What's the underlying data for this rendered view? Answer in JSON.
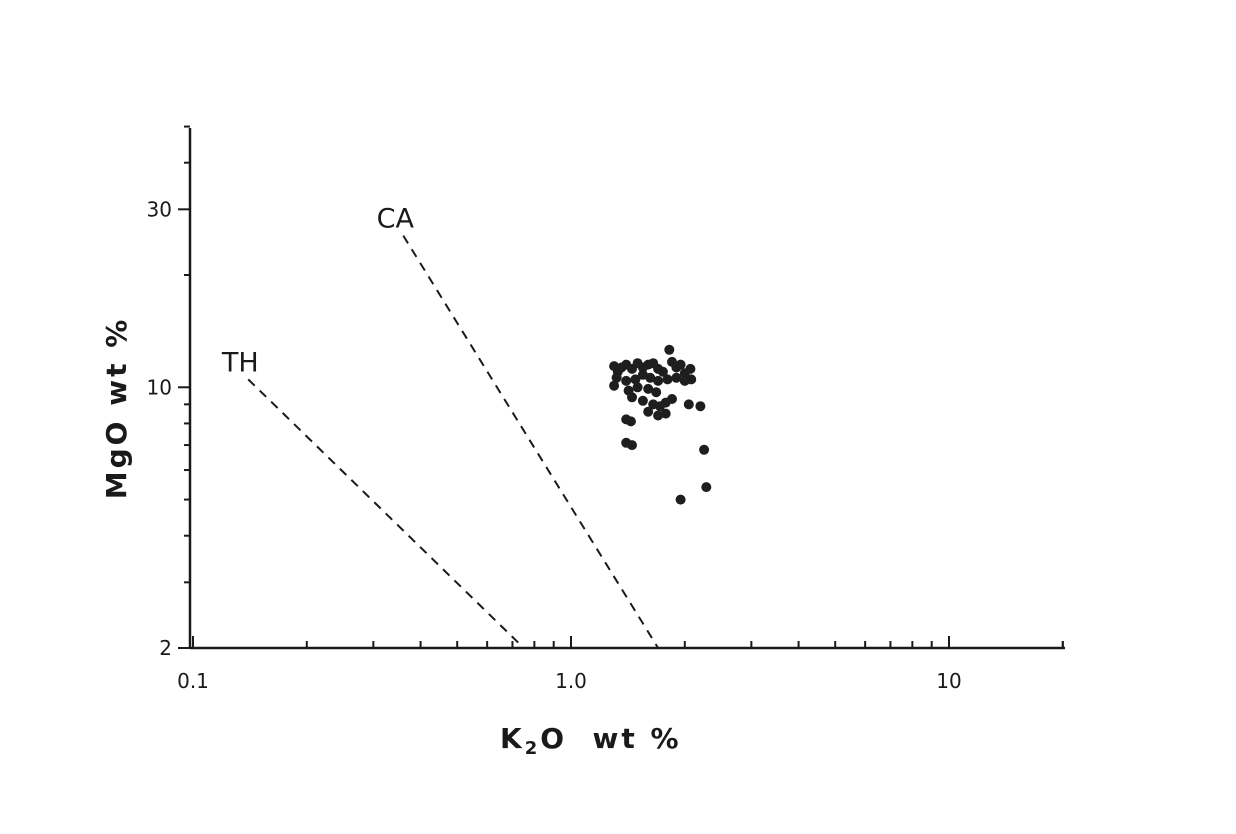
{
  "chart_data": {
    "type": "scatter",
    "xlabel_main": "K",
    "xlabel_sub": "2",
    "xlabel_tail": "O  wt %",
    "ylabel": "MgO  wt %",
    "xscale": "log",
    "yscale": "log",
    "xlim": [
      0.1,
      20
    ],
    "ylim": [
      2,
      50
    ],
    "grid": false,
    "x_tick_labels": [
      {
        "value": 0.1,
        "label": "0.1"
      },
      {
        "value": 1.0,
        "label": "1.0"
      },
      {
        "value": 10,
        "label": "10"
      }
    ],
    "y_tick_labels": [
      {
        "value": 2,
        "label": "2"
      },
      {
        "value": 10,
        "label": "10"
      },
      {
        "value": 30,
        "label": "30"
      }
    ],
    "reference_lines": [
      {
        "name": "TH",
        "points": [
          [
            0.14,
            10.5
          ],
          [
            0.75,
            2.0
          ]
        ]
      },
      {
        "name": "CA",
        "points": [
          [
            0.36,
            25.5
          ],
          [
            1.7,
            2.0
          ]
        ]
      }
    ],
    "points": [
      [
        1.3,
        11.4
      ],
      [
        1.33,
        11.0
      ],
      [
        1.36,
        11.3
      ],
      [
        1.4,
        11.5
      ],
      [
        1.45,
        11.2
      ],
      [
        1.5,
        11.6
      ],
      [
        1.55,
        11.3
      ],
      [
        1.6,
        11.5
      ],
      [
        1.65,
        11.6
      ],
      [
        1.7,
        11.2
      ],
      [
        1.75,
        11.0
      ],
      [
        1.82,
        12.6
      ],
      [
        1.85,
        11.7
      ],
      [
        1.9,
        11.3
      ],
      [
        1.95,
        11.5
      ],
      [
        2.0,
        10.9
      ],
      [
        2.07,
        11.2
      ],
      [
        1.32,
        10.6
      ],
      [
        1.4,
        10.4
      ],
      [
        1.48,
        10.5
      ],
      [
        1.55,
        10.8
      ],
      [
        1.62,
        10.6
      ],
      [
        1.7,
        10.4
      ],
      [
        1.8,
        10.5
      ],
      [
        1.9,
        10.6
      ],
      [
        2.0,
        10.4
      ],
      [
        2.08,
        10.5
      ],
      [
        1.3,
        10.1
      ],
      [
        1.42,
        9.8
      ],
      [
        1.5,
        10.0
      ],
      [
        1.6,
        9.9
      ],
      [
        1.68,
        9.7
      ],
      [
        1.45,
        9.4
      ],
      [
        1.55,
        9.2
      ],
      [
        1.65,
        9.0
      ],
      [
        1.72,
        8.9
      ],
      [
        1.78,
        9.1
      ],
      [
        1.85,
        9.3
      ],
      [
        2.05,
        9.0
      ],
      [
        2.2,
        8.9
      ],
      [
        1.6,
        8.6
      ],
      [
        1.7,
        8.4
      ],
      [
        1.78,
        8.5
      ],
      [
        1.4,
        8.2
      ],
      [
        1.44,
        8.1
      ],
      [
        1.4,
        7.1
      ],
      [
        1.45,
        7.0
      ],
      [
        2.25,
        6.8
      ],
      [
        1.95,
        5.0
      ],
      [
        2.28,
        5.4
      ]
    ]
  }
}
